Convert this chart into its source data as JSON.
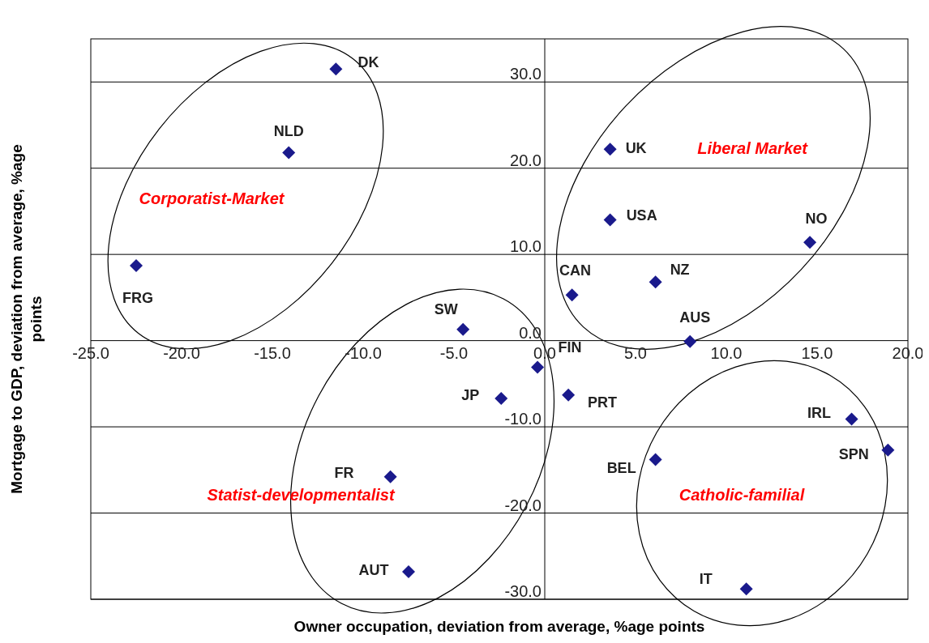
{
  "chart_data": {
    "type": "scatter",
    "xlabel": "Owner occupation, deviation from average, %age points",
    "ylabel": "Mortgage to GDP, deviation from average, %age points",
    "xlim": [
      -25,
      20
    ],
    "ylim": [
      -30,
      35
    ],
    "xticks": [
      {
        "value": -25,
        "label": "-25.0"
      },
      {
        "value": -20,
        "label": "-20.0"
      },
      {
        "value": -15,
        "label": "-15.0"
      },
      {
        "value": -10,
        "label": "-10.0"
      },
      {
        "value": -5,
        "label": "-5.0"
      },
      {
        "value": 0,
        "label": "0.0"
      },
      {
        "value": 5,
        "label": "5.0"
      },
      {
        "value": 10,
        "label": "10.0"
      },
      {
        "value": 15,
        "label": "15.0"
      },
      {
        "value": 20,
        "label": "20.0"
      }
    ],
    "yticks": [
      {
        "value": -30,
        "label": "-30.0"
      },
      {
        "value": -20,
        "label": "-20.0"
      },
      {
        "value": -10,
        "label": "-10.0"
      },
      {
        "value": 0,
        "label": "0.0"
      },
      {
        "value": 10,
        "label": "10.0"
      },
      {
        "value": 20,
        "label": "20.0"
      },
      {
        "value": 30,
        "label": "30.0"
      }
    ],
    "grid": "y",
    "legend": false,
    "marker": "diamond",
    "series": [
      {
        "name": "DK",
        "color": "#1a1a8c",
        "x": [
          -11.5
        ],
        "values": [
          31.5
        ]
      },
      {
        "name": "NLD",
        "color": "#1a1a8c",
        "x": [
          -14.1
        ],
        "values": [
          21.8
        ]
      },
      {
        "name": "FRG",
        "color": "#1a1a8c",
        "x": [
          -22.5
        ],
        "values": [
          8.7
        ]
      },
      {
        "name": "SW",
        "color": "#1a1a8c",
        "x": [
          -4.5
        ],
        "values": [
          1.3
        ]
      },
      {
        "name": "FIN",
        "color": "#1a1a8c",
        "x": [
          -0.4
        ],
        "values": [
          -3.1
        ]
      },
      {
        "name": "JP",
        "color": "#1a1a8c",
        "x": [
          -2.4
        ],
        "values": [
          -6.7
        ]
      },
      {
        "name": "FR",
        "color": "#1a1a8c",
        "x": [
          -8.5
        ],
        "values": [
          -15.8
        ]
      },
      {
        "name": "AUT",
        "color": "#1a1a8c",
        "x": [
          -7.5
        ],
        "values": [
          -26.8
        ]
      },
      {
        "name": "UK",
        "color": "#1a1a8c",
        "x": [
          3.6
        ],
        "values": [
          22.2
        ]
      },
      {
        "name": "USA",
        "color": "#1a1a8c",
        "x": [
          3.6
        ],
        "values": [
          14.0
        ]
      },
      {
        "name": "CAN",
        "color": "#1a1a8c",
        "x": [
          1.5
        ],
        "values": [
          5.3
        ]
      },
      {
        "name": "NZ",
        "color": "#1a1a8c",
        "x": [
          6.1
        ],
        "values": [
          6.8
        ]
      },
      {
        "name": "AUS",
        "color": "#1a1a8c",
        "x": [
          8.0
        ],
        "values": [
          -0.1
        ]
      },
      {
        "name": "NO",
        "color": "#1a1a8c",
        "x": [
          14.6
        ],
        "values": [
          11.4
        ]
      },
      {
        "name": "PRT",
        "color": "#1a1a8c",
        "x": [
          1.3
        ],
        "values": [
          -6.3
        ]
      },
      {
        "name": "IRL",
        "color": "#1a1a8c",
        "x": [
          16.9
        ],
        "values": [
          -9.1
        ]
      },
      {
        "name": "SPN",
        "color": "#1a1a8c",
        "x": [
          18.9
        ],
        "values": [
          -12.7
        ]
      },
      {
        "name": "BEL",
        "color": "#1a1a8c",
        "x": [
          6.1
        ],
        "values": [
          -13.8
        ]
      },
      {
        "name": "IT",
        "color": "#1a1a8c",
        "x": [
          11.1
        ],
        "values": [
          -28.8
        ]
      }
    ],
    "annotations": [
      "Corporatist-Market",
      "Liberal Market",
      "Statist-developmentalist",
      "Catholic-familial"
    ]
  }
}
